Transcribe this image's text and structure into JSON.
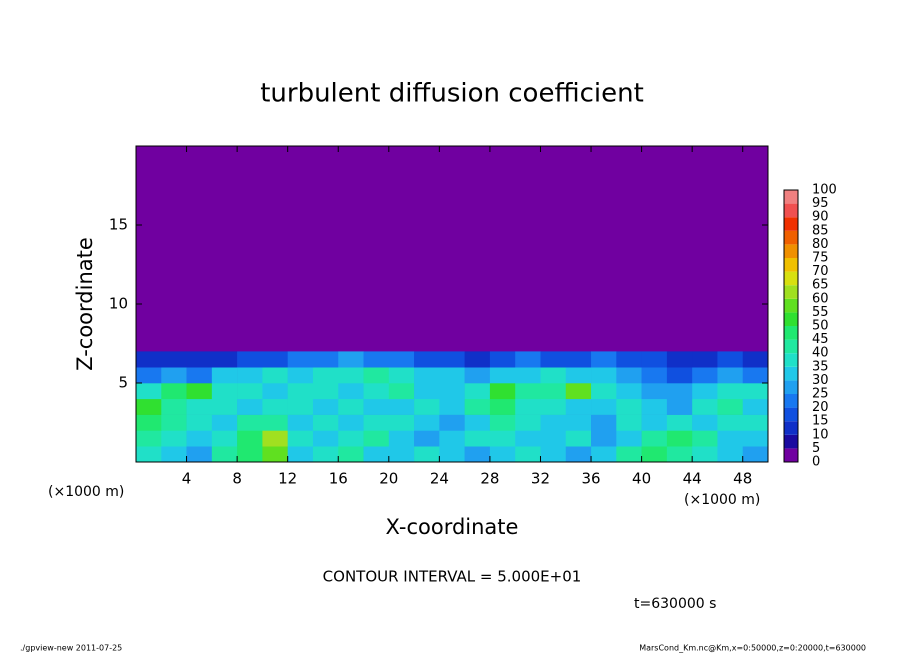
{
  "chart_data": {
    "type": "contour",
    "title": "turbulent diffusion coefficient",
    "xlabel": "X-coordinate",
    "ylabel": "Z-coordinate",
    "x_unit": "(×1000 m)",
    "y_unit": "(×1000 m)",
    "xlim": [
      0,
      50
    ],
    "ylim": [
      0,
      20
    ],
    "xticks": [
      4,
      8,
      12,
      16,
      20,
      24,
      28,
      32,
      36,
      40,
      44,
      48
    ],
    "yticks": [
      5,
      10,
      15
    ],
    "field": {
      "x": [
        1,
        3,
        5,
        7,
        9,
        11,
        13,
        15,
        17,
        19,
        21,
        23,
        25,
        27,
        29,
        31,
        33,
        35,
        37,
        39,
        41,
        43,
        45,
        47,
        49
      ],
      "z": [
        0.5,
        1.5,
        2.5,
        3.5,
        4.5,
        5.5,
        6.5
      ],
      "values": [
        [
          35,
          30,
          25,
          40,
          45,
          55,
          30,
          35,
          40,
          30,
          30,
          35,
          30,
          25,
          30,
          35,
          30,
          25,
          30,
          40,
          45,
          40,
          35,
          30,
          25
        ],
        [
          40,
          35,
          30,
          35,
          45,
          60,
          35,
          30,
          35,
          40,
          30,
          25,
          30,
          35,
          35,
          30,
          30,
          35,
          25,
          30,
          40,
          45,
          40,
          30,
          30
        ],
        [
          45,
          40,
          35,
          30,
          40,
          40,
          30,
          35,
          30,
          35,
          35,
          30,
          25,
          30,
          40,
          35,
          30,
          30,
          25,
          35,
          30,
          35,
          30,
          35,
          35
        ],
        [
          50,
          40,
          35,
          35,
          30,
          35,
          35,
          30,
          35,
          30,
          30,
          35,
          30,
          40,
          45,
          35,
          35,
          30,
          30,
          35,
          30,
          25,
          35,
          40,
          30
        ],
        [
          35,
          45,
          50,
          35,
          35,
          30,
          35,
          35,
          30,
          35,
          40,
          30,
          30,
          35,
          50,
          40,
          40,
          55,
          35,
          30,
          25,
          25,
          30,
          35,
          35
        ],
        [
          20,
          25,
          20,
          30,
          30,
          35,
          30,
          35,
          35,
          40,
          35,
          30,
          30,
          25,
          30,
          30,
          35,
          30,
          30,
          25,
          20,
          15,
          20,
          25,
          20
        ],
        [
          10,
          10,
          10,
          10,
          15,
          15,
          20,
          20,
          25,
          20,
          20,
          15,
          15,
          10,
          15,
          20,
          15,
          15,
          20,
          15,
          15,
          10,
          10,
          15,
          10
        ]
      ]
    },
    "colorbar": {
      "levels": [
        0,
        5,
        10,
        15,
        20,
        25,
        30,
        35,
        40,
        45,
        50,
        55,
        60,
        65,
        70,
        75,
        80,
        85,
        90,
        95,
        100
      ],
      "colors": [
        "#7000a0",
        "#1a0aa0",
        "#1030c8",
        "#1050e0",
        "#1878f0",
        "#20a0f0",
        "#20c8e8",
        "#20e0c8",
        "#20e8a0",
        "#20e870",
        "#30e030",
        "#60e020",
        "#a0e020",
        "#d8e010",
        "#f0c000",
        "#f09000",
        "#f06000",
        "#f03000",
        "#f05050",
        "#f08080"
      ]
    },
    "contour_interval": "CONTOUR INTERVAL = 5.000E+01",
    "time_label": "t=630000 s",
    "footer_left": "./gpview-new   2011-07-25",
    "footer_right": "MarsCond_Km.nc@Km,x=0:50000,z=0:20000,t=630000"
  }
}
